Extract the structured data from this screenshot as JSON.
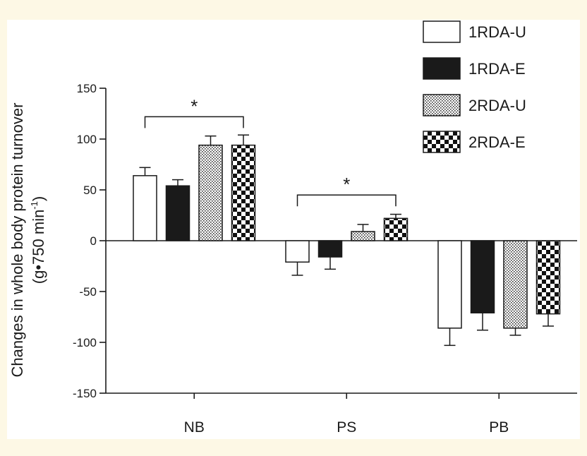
{
  "chart_data": {
    "type": "bar",
    "ylabel_line1": "Changes in whole body protein turnover",
    "ylabel_line2_prefix": "(g•750 min",
    "ylabel_line2_sup": "-1",
    "ylabel_line2_suffix": ")",
    "xlabel": "",
    "ylim": [
      -150,
      150
    ],
    "yticks": [
      150,
      100,
      50,
      0,
      -50,
      -100,
      -150
    ],
    "categories": [
      "NB",
      "PS",
      "PB"
    ],
    "series": [
      {
        "name": "1RDA-U",
        "pattern": "open",
        "values": [
          64,
          -21,
          -86
        ],
        "errors": [
          8,
          13,
          17
        ]
      },
      {
        "name": "1RDA-E",
        "pattern": "solid",
        "values": [
          54,
          -16,
          -71
        ],
        "errors": [
          6,
          12,
          17
        ]
      },
      {
        "name": "2RDA-U",
        "pattern": "dots",
        "values": [
          94,
          9,
          -86
        ],
        "errors": [
          9,
          7,
          7
        ]
      },
      {
        "name": "2RDA-E",
        "pattern": "checker",
        "values": [
          94,
          22,
          -72
        ],
        "errors": [
          10,
          4,
          12
        ]
      }
    ],
    "annotations": [
      {
        "text": "*",
        "category": "NB",
        "from_series": 0,
        "to_series": 3,
        "value": 122
      },
      {
        "text": "*",
        "category": "PS",
        "from_series": 0,
        "to_series": 3,
        "value": 45
      }
    ],
    "legend_position": "top-right"
  },
  "colors": {
    "background": "#fdf8e5",
    "plot": "#ffffff",
    "ink": "#1a1a1a"
  }
}
